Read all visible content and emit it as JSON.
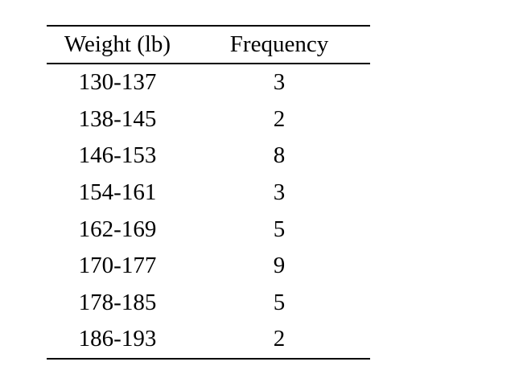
{
  "table": {
    "headers": {
      "weight": "Weight (lb)",
      "frequency": "Frequency"
    },
    "rows": [
      {
        "weight": "130-137",
        "frequency": "3"
      },
      {
        "weight": "138-145",
        "frequency": "2"
      },
      {
        "weight": "146-153",
        "frequency": "8"
      },
      {
        "weight": "154-161",
        "frequency": "3"
      },
      {
        "weight": "162-169",
        "frequency": "5"
      },
      {
        "weight": "170-177",
        "frequency": "9"
      },
      {
        "weight": "178-185",
        "frequency": "5"
      },
      {
        "weight": "186-193",
        "frequency": "2"
      }
    ]
  }
}
